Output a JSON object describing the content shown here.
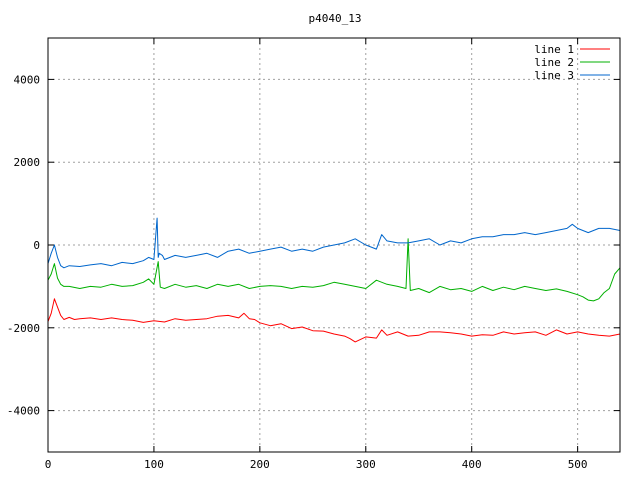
{
  "chart_data": {
    "type": "line",
    "title": "p4040_13",
    "xlabel": "",
    "ylabel": "",
    "xlim": [
      0,
      540
    ],
    "ylim": [
      -5000,
      5000
    ],
    "xticks": [
      0,
      100,
      200,
      300,
      400,
      500
    ],
    "yticks": [
      -4000,
      -2000,
      0,
      2000,
      4000
    ],
    "grid": true,
    "legend_position": "top-right",
    "series": [
      {
        "name": "line 1",
        "color": "#ff0000",
        "x": [
          0,
          3,
          6,
          9,
          12,
          15,
          20,
          25,
          30,
          40,
          50,
          60,
          70,
          80,
          90,
          100,
          110,
          120,
          130,
          140,
          150,
          160,
          170,
          180,
          185,
          190,
          195,
          200,
          210,
          220,
          230,
          240,
          250,
          260,
          270,
          280,
          285,
          290,
          295,
          300,
          310,
          315,
          320,
          330,
          340,
          350,
          360,
          370,
          380,
          390,
          400,
          410,
          420,
          430,
          440,
          450,
          460,
          470,
          480,
          490,
          500,
          510,
          520,
          530,
          540
        ],
        "y": [
          -1850,
          -1650,
          -1300,
          -1500,
          -1700,
          -1800,
          -1750,
          -1800,
          -1780,
          -1760,
          -1800,
          -1760,
          -1800,
          -1820,
          -1870,
          -1830,
          -1860,
          -1780,
          -1820,
          -1800,
          -1780,
          -1720,
          -1700,
          -1760,
          -1650,
          -1780,
          -1800,
          -1880,
          -1950,
          -1900,
          -2020,
          -1980,
          -2070,
          -2080,
          -2150,
          -2200,
          -2260,
          -2340,
          -2280,
          -2220,
          -2250,
          -2050,
          -2180,
          -2100,
          -2200,
          -2180,
          -2100,
          -2100,
          -2120,
          -2150,
          -2200,
          -2170,
          -2180,
          -2100,
          -2150,
          -2120,
          -2100,
          -2180,
          -2050,
          -2150,
          -2100,
          -2150,
          -2180,
          -2200,
          -2150
        ]
      },
      {
        "name": "line 2",
        "color": "#00b000",
        "x": [
          0,
          3,
          6,
          9,
          12,
          15,
          20,
          30,
          40,
          50,
          60,
          70,
          80,
          90,
          95,
          100,
          104,
          106,
          110,
          120,
          130,
          140,
          150,
          160,
          170,
          180,
          190,
          200,
          210,
          220,
          230,
          240,
          250,
          260,
          270,
          280,
          290,
          300,
          310,
          320,
          330,
          338,
          340,
          342,
          350,
          360,
          370,
          380,
          390,
          400,
          410,
          420,
          430,
          440,
          450,
          460,
          470,
          480,
          490,
          500,
          505,
          510,
          515,
          520,
          525,
          530,
          535,
          540
        ],
        "y": [
          -850,
          -700,
          -450,
          -800,
          -950,
          -1000,
          -1000,
          -1050,
          -1000,
          -1020,
          -950,
          -1000,
          -980,
          -900,
          -820,
          -950,
          -400,
          -1020,
          -1050,
          -950,
          -1020,
          -980,
          -1050,
          -950,
          -1000,
          -950,
          -1050,
          -1000,
          -980,
          -1000,
          -1050,
          -1000,
          -1020,
          -980,
          -900,
          -950,
          -1000,
          -1050,
          -850,
          -950,
          -1000,
          -1050,
          150,
          -1100,
          -1050,
          -1150,
          -1000,
          -1080,
          -1050,
          -1120,
          -1000,
          -1100,
          -1020,
          -1080,
          -1000,
          -1050,
          -1100,
          -1060,
          -1120,
          -1200,
          -1250,
          -1330,
          -1350,
          -1300,
          -1150,
          -1050,
          -700,
          -550
        ]
      },
      {
        "name": "line 3",
        "color": "#0066cc",
        "x": [
          0,
          3,
          6,
          9,
          12,
          15,
          20,
          30,
          40,
          50,
          60,
          70,
          80,
          90,
          95,
          100,
          103,
          104,
          105,
          108,
          110,
          120,
          130,
          140,
          150,
          160,
          170,
          180,
          190,
          200,
          210,
          220,
          230,
          240,
          250,
          260,
          270,
          280,
          290,
          300,
          310,
          315,
          320,
          330,
          340,
          350,
          360,
          370,
          380,
          390,
          400,
          410,
          420,
          430,
          440,
          450,
          460,
          470,
          480,
          490,
          495,
          500,
          510,
          520,
          530,
          540
        ],
        "y": [
          -450,
          -200,
          0,
          -300,
          -500,
          -550,
          -500,
          -520,
          -480,
          -450,
          -500,
          -420,
          -450,
          -380,
          -300,
          -350,
          650,
          -300,
          -200,
          -250,
          -350,
          -250,
          -300,
          -250,
          -200,
          -300,
          -150,
          -100,
          -200,
          -150,
          -100,
          -50,
          -150,
          -100,
          -150,
          -50,
          0,
          50,
          150,
          0,
          -100,
          250,
          100,
          50,
          50,
          100,
          150,
          0,
          100,
          50,
          150,
          200,
          200,
          250,
          250,
          300,
          250,
          300,
          350,
          400,
          500,
          400,
          300,
          400,
          400,
          350
        ]
      }
    ]
  }
}
